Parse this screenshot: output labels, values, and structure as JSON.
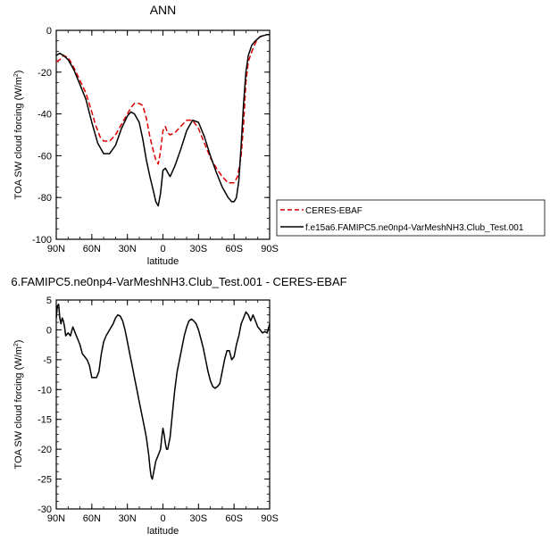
{
  "chart_data": [
    {
      "type": "line",
      "title": "ANN",
      "xlabel": "latitude",
      "ylabel": "TOA SW cloud forcing (W/m²)",
      "xlim": [
        90,
        -90
      ],
      "ylim": [
        -100,
        0
      ],
      "xticks": [
        90,
        60,
        30,
        0,
        -30,
        -60,
        -90
      ],
      "xticklabels": [
        "90N",
        "60N",
        "30N",
        "0",
        "30S",
        "60S",
        "90S"
      ],
      "yticks": [
        0,
        -20,
        -40,
        -60,
        -80,
        -100
      ],
      "yticklabels": [
        "0",
        "-20",
        "-40",
        "-60",
        "-80",
        "-100"
      ],
      "legend_position": "right",
      "series": [
        {
          "name": "CERES-EBAF",
          "color": "#dd0000",
          "dash": "dashed",
          "x": [
            90,
            87,
            84,
            80,
            75,
            70,
            65,
            60,
            57,
            53,
            50,
            45,
            40,
            35,
            30,
            27,
            24,
            20,
            17,
            14,
            11,
            8,
            6,
            4,
            2,
            0,
            -2,
            -4,
            -6,
            -10,
            -15,
            -20,
            -25,
            -30,
            -35,
            -40,
            -45,
            -50,
            -55,
            -60,
            -63,
            -66,
            -68,
            -70,
            -72,
            -75,
            -78,
            -80,
            -82,
            -85,
            -88,
            -90
          ],
          "y": [
            -15,
            -14,
            -12,
            -13,
            -18,
            -24,
            -30,
            -39,
            -45,
            -51,
            -53,
            -53,
            -50,
            -45,
            -40,
            -37,
            -35,
            -35,
            -36,
            -42,
            -51,
            -58,
            -62,
            -64,
            -58,
            -48,
            -46,
            -49,
            -50,
            -49,
            -46,
            -43,
            -43,
            -47,
            -54,
            -61,
            -66,
            -70,
            -73,
            -73,
            -70,
            -60,
            -45,
            -25,
            -15,
            -10,
            -6,
            -4,
            -3,
            -2.5,
            -2,
            -2
          ]
        },
        {
          "name": "f.e15a6.FAMIPC5.ne0np4-VarMeshNH3.Club_Test.001",
          "color": "#000000",
          "dash": "solid",
          "x": [
            90,
            87,
            84,
            80,
            75,
            70,
            65,
            60,
            55,
            50,
            45,
            40,
            35,
            30,
            27,
            24,
            20,
            17,
            14,
            11,
            8,
            6,
            4,
            2,
            0,
            -2,
            -4,
            -6,
            -10,
            -15,
            -20,
            -25,
            -30,
            -35,
            -40,
            -45,
            -50,
            -55,
            -58,
            -60,
            -62,
            -64,
            -66,
            -68,
            -70,
            -72,
            -75,
            -78,
            -80,
            -82,
            -85,
            -88,
            -90
          ],
          "y": [
            -12,
            -11,
            -12,
            -14,
            -19,
            -26,
            -33,
            -44,
            -54,
            -59,
            -59,
            -55,
            -47,
            -41,
            -39,
            -40,
            -44,
            -52,
            -62,
            -70,
            -77,
            -82,
            -84,
            -78,
            -67,
            -66,
            -68,
            -70,
            -65,
            -57,
            -48,
            -43,
            -44,
            -51,
            -60,
            -68,
            -75,
            -80,
            -82,
            -82,
            -80,
            -72,
            -55,
            -35,
            -20,
            -12,
            -7,
            -5,
            -4,
            -3,
            -2.5,
            -2,
            -2
          ]
        }
      ]
    },
    {
      "type": "line",
      "title": "6.FAMIPC5.ne0np4-VarMeshNH3.Club_Test.001 - CERES-EBAF",
      "xlabel": "latitude",
      "ylabel": "TOA SW cloud forcing (W/m²)",
      "xlim": [
        90,
        -90
      ],
      "ylim": [
        -30,
        5
      ],
      "xticks": [
        90,
        60,
        30,
        0,
        -30,
        -60,
        -90
      ],
      "xticklabels": [
        "90N",
        "60N",
        "30N",
        "0",
        "30S",
        "60S",
        "90S"
      ],
      "yticks": [
        5,
        0,
        -5,
        -10,
        -15,
        -20,
        -25,
        -30
      ],
      "yticklabels": [
        "5",
        "0",
        "-5",
        "-10",
        "-15",
        "-20",
        "-25",
        "-30"
      ],
      "series": [
        {
          "name": "",
          "color": "#000000",
          "dash": "solid",
          "x": [
            90,
            89,
            88,
            87,
            86,
            85,
            84,
            83,
            82,
            80,
            78,
            76,
            74,
            72,
            70,
            68,
            66,
            64,
            62,
            60,
            58,
            56,
            54,
            52,
            50,
            48,
            45,
            42,
            40,
            38,
            36,
            34,
            32,
            30,
            28,
            26,
            24,
            22,
            20,
            18,
            16,
            14,
            12,
            11,
            10,
            9,
            8,
            7,
            6,
            4,
            2,
            1,
            0,
            -1,
            -2,
            -3,
            -4,
            -6,
            -8,
            -10,
            -12,
            -15,
            -18,
            -20,
            -22,
            -24,
            -26,
            -28,
            -30,
            -32,
            -34,
            -36,
            -38,
            -40,
            -42,
            -44,
            -46,
            -48,
            -50,
            -52,
            -54,
            -56,
            -58,
            -60,
            -62,
            -64,
            -66,
            -68,
            -70,
            -72,
            -74,
            -76,
            -78,
            -80,
            -82,
            -84,
            -86,
            -88,
            -90
          ],
          "y": [
            2,
            4,
            4.3,
            2,
            1,
            2,
            1.5,
            0.5,
            -1,
            -0.5,
            -1,
            0.5,
            -0.5,
            -1.5,
            -2.5,
            -4,
            -4.5,
            -5,
            -6,
            -8,
            -8,
            -8,
            -7,
            -4,
            -2,
            -1,
            0,
            1,
            2,
            2.5,
            2.3,
            1.5,
            0,
            -2,
            -4,
            -6,
            -8,
            -10,
            -12,
            -14,
            -16,
            -18,
            -21,
            -23,
            -24.5,
            -25,
            -24,
            -23,
            -22,
            -21,
            -20,
            -18,
            -16.5,
            -17.5,
            -19,
            -20,
            -20,
            -18,
            -14,
            -10,
            -7,
            -4,
            -1,
            0.5,
            1.5,
            1.8,
            1.5,
            1,
            0,
            -1.5,
            -3,
            -5,
            -7,
            -8.5,
            -9.5,
            -9.8,
            -9.5,
            -9,
            -7,
            -5,
            -3.5,
            -3.5,
            -5,
            -4.5,
            -2.5,
            -1,
            1,
            2,
            3,
            2.5,
            1.5,
            2.5,
            1.5,
            0.5,
            0,
            -0.5,
            -0.3,
            -0.5,
            1
          ]
        }
      ]
    }
  ]
}
